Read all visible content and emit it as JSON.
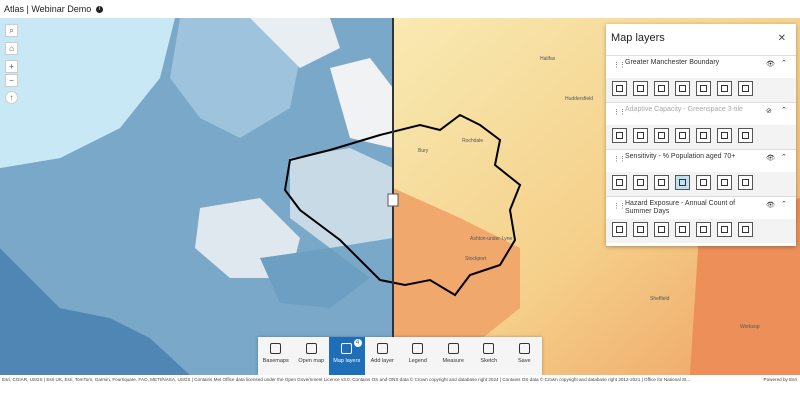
{
  "header": {
    "title": "Atlas | Webinar Demo"
  },
  "map_labels": [
    {
      "text": "Halifax"
    },
    {
      "text": "Huddersfield"
    },
    {
      "text": "Rochdale"
    },
    {
      "text": "Bury"
    },
    {
      "text": "Ashton-under-Lyne"
    },
    {
      "text": "Stockport"
    },
    {
      "text": "Sheffield"
    },
    {
      "text": "Worksop"
    }
  ],
  "layers_panel": {
    "title": "Map layers",
    "layers": [
      {
        "name": "Greater Manchester Boundary",
        "visible": true
      },
      {
        "name": "Adaptive Capacity - Greenspace 3-tile",
        "visible": false
      },
      {
        "name": "Sensitivity - % Population aged 70+",
        "visible": true
      },
      {
        "name": "Hazard Exposure - Annual Count of Summer Days",
        "visible": true
      }
    ]
  },
  "toolbar": {
    "badge": 4,
    "items": [
      "Basemaps",
      "Open map",
      "Map layers",
      "Add layer",
      "Legend",
      "Measure",
      "Sketch",
      "Save"
    ]
  },
  "attribution": "Esri, CGIAR, USGS | Esri UK, Esri, TomTom, Garmin, Foursquare, FAO, METI/NASA, USGS | Contains Met Office data licensed under the Open Government Licence v3.0. Contains OS and ONS data © Crown copyright and database right 2024 | Contains OS data © Crown copyright and database right 2012-2021 | Office for National St...",
  "powered_by": "Powered by Esri"
}
